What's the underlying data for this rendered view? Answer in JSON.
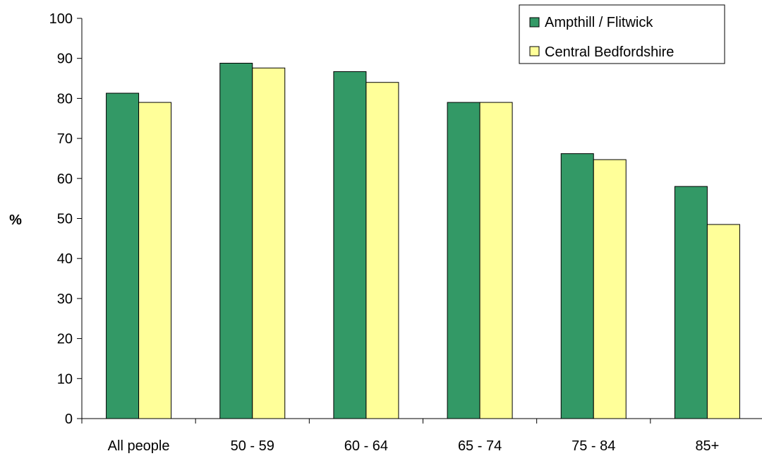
{
  "chart_data": {
    "type": "bar",
    "title": "",
    "xlabel": "",
    "ylabel": "%",
    "ylim": [
      0,
      100
    ],
    "yticks": [
      0,
      10,
      20,
      30,
      40,
      50,
      60,
      70,
      80,
      90,
      100
    ],
    "grid": false,
    "legend_position": "top-right",
    "categories": [
      "All people",
      "50 - 59",
      "60 - 64",
      "65 - 74",
      "75 - 84",
      "85+"
    ],
    "series": [
      {
        "name": "Ampthill / Flitwick",
        "color": "#339966",
        "values": [
          81.3,
          88.8,
          86.7,
          79.0,
          66.2,
          58.0
        ]
      },
      {
        "name": "Central Bedfordshire",
        "color": "#ffff99",
        "values": [
          79.0,
          87.6,
          84.0,
          79.0,
          64.7,
          48.5
        ]
      }
    ]
  }
}
